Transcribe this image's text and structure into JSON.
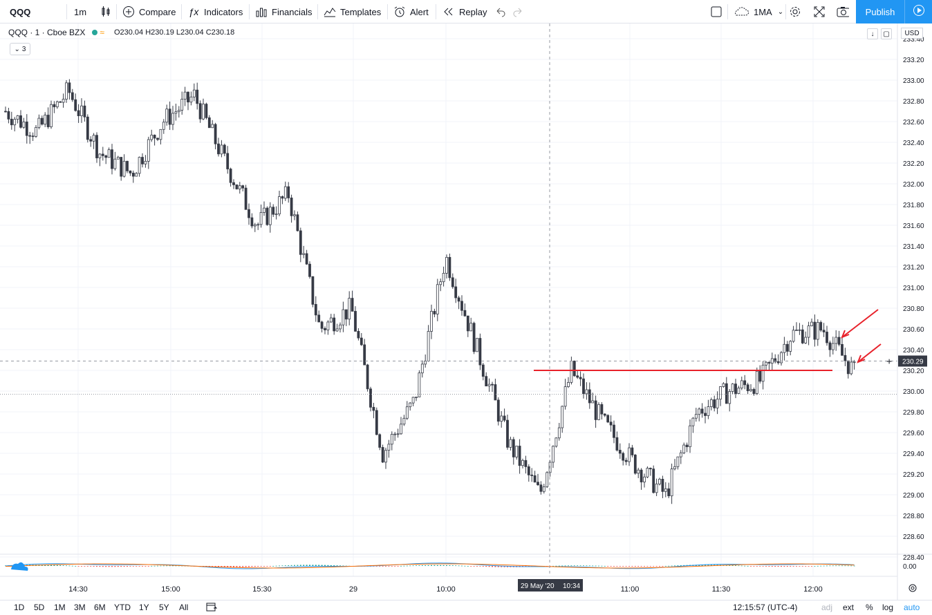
{
  "toolbar": {
    "symbol": "QQQ",
    "interval": "1m",
    "compare": "Compare",
    "indicators": "Indicators",
    "financials": "Financials",
    "templates": "Templates",
    "alert": "Alert",
    "replay": "Replay",
    "ma": "1MA",
    "publish": "Publish"
  },
  "legend": {
    "title": "QQQ · 1 · Cboe BZX",
    "ohlc": "O230.04  H230.19  L230.04  C230.18",
    "collapse": "3"
  },
  "price_axis": {
    "currency": "USD",
    "current_price": "230.29",
    "ticks": [
      "233.40",
      "233.20",
      "233.00",
      "232.80",
      "232.60",
      "232.40",
      "232.20",
      "232.00",
      "231.80",
      "231.60",
      "231.40",
      "231.20",
      "231.00",
      "230.80",
      "230.60",
      "230.40",
      "230.20",
      "230.00",
      "229.80",
      "229.60",
      "229.40",
      "229.20",
      "229.00",
      "228.80",
      "228.60",
      "228.40",
      "0.00"
    ]
  },
  "time_axis": {
    "ticks": [
      "14:30",
      "15:00",
      "15:30",
      "29",
      "10:00",
      "11:00",
      "11:30",
      "12:00"
    ],
    "crosshair_label_date": "29 May '20",
    "crosshair_label_time": "10:34"
  },
  "bottombar": {
    "ranges": [
      "1D",
      "5D",
      "1M",
      "3M",
      "6M",
      "YTD",
      "1Y",
      "5Y",
      "All"
    ],
    "clock": "12:15:57 (UTC-4)",
    "adj": "adj",
    "ext": "ext",
    "pct": "%",
    "log": "log",
    "auto": "auto"
  },
  "colors": {
    "candle": "#363a45",
    "annotation": "#e8212a",
    "accent": "#2196f3",
    "macd_fast": "#2196f3",
    "macd_slow": "#ff6d00",
    "hist_up": "#26a69a",
    "hist_down": "#ef5350"
  },
  "chart_data": {
    "type": "candlestick",
    "symbol": "QQQ",
    "interval": "1m",
    "ylim": [
      228.4,
      233.4
    ],
    "x": [
      "14:30",
      "15:00",
      "15:30",
      "29",
      "10:00",
      "11:00",
      "11:30",
      "12:00"
    ],
    "close_path": [
      232.7,
      232.5,
      232.9,
      232.3,
      232.1,
      232.6,
      232.85,
      232.2,
      231.6,
      231.9,
      230.6,
      230.8,
      229.4,
      229.9,
      231.3,
      230.4,
      229.5,
      229.0,
      230.2,
      229.7,
      229.3,
      229.0,
      229.8,
      230.0,
      230.1,
      230.55,
      230.6,
      230.18
    ],
    "annotations": [
      {
        "type": "horizontal_line",
        "value": 230.2,
        "color": "#e8212a"
      },
      {
        "type": "arrow",
        "near_value": 230.45
      },
      {
        "type": "arrow",
        "near_value": 230.25
      }
    ]
  }
}
